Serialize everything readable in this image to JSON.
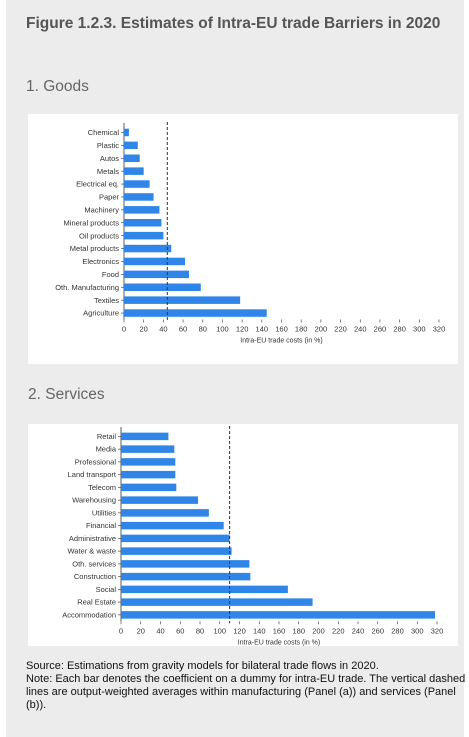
{
  "figure_title": "Figure 1.2.3. Estimates of Intra-EU trade Barriers in 2020",
  "goods_title": "1. Goods",
  "services_title": "2. Services",
  "source_line": "Source: Estimations from gravity models for bilateral trade flows in 2020.",
  "note_line": "Note: Each bar denotes the coefficient on a dummy for intra-EU trade. The vertical dashed lines are output-weighted averages within manufacturing (Panel (a)) and services (Panel (b)).",
  "colors": {
    "bar": "#2f86e8",
    "panel": "#ececec",
    "axis": "#333333"
  },
  "chart_data": [
    {
      "type": "bar",
      "orientation": "horizontal",
      "categories": [
        "Chemical",
        "Plastic",
        "Autos",
        "Metals",
        "Electrical eq.",
        "Paper",
        "Machinery",
        "Mineral products",
        "Oil products",
        "Metal products",
        "Electronics",
        "Food",
        "Oth. Manufacturing",
        "Textiles",
        "Agriculture"
      ],
      "values": [
        5,
        14,
        16,
        20,
        26,
        30,
        36,
        38,
        40,
        48,
        62,
        66,
        78,
        118,
        145
      ],
      "xlabel": "Intra-EU trade costs (in %)",
      "xlim": [
        0,
        320
      ],
      "xticks": [
        0,
        20,
        40,
        60,
        80,
        100,
        120,
        140,
        160,
        180,
        200,
        220,
        240,
        260,
        280,
        300,
        320
      ],
      "reference_line": 44,
      "grid": false
    },
    {
      "type": "bar",
      "orientation": "horizontal",
      "categories": [
        "Retail",
        "Media",
        "Professional",
        "Land transport",
        "Telecom",
        "Warehousing",
        "Utilities",
        "Financial",
        "Administrative",
        "Water & waste",
        "Oth. services",
        "Construction",
        "Social",
        "Real Estate",
        "Accommodation"
      ],
      "values": [
        48,
        54,
        55,
        55,
        56,
        78,
        89,
        104,
        110,
        112,
        130,
        131,
        169,
        194,
        318
      ],
      "xlabel": "Intra-EU trade costs (in %)",
      "xlim": [
        0,
        320
      ],
      "xticks": [
        0,
        20,
        40,
        60,
        80,
        100,
        120,
        140,
        160,
        180,
        200,
        220,
        240,
        260,
        280,
        300,
        320
      ],
      "reference_line": 110,
      "grid": false
    }
  ]
}
